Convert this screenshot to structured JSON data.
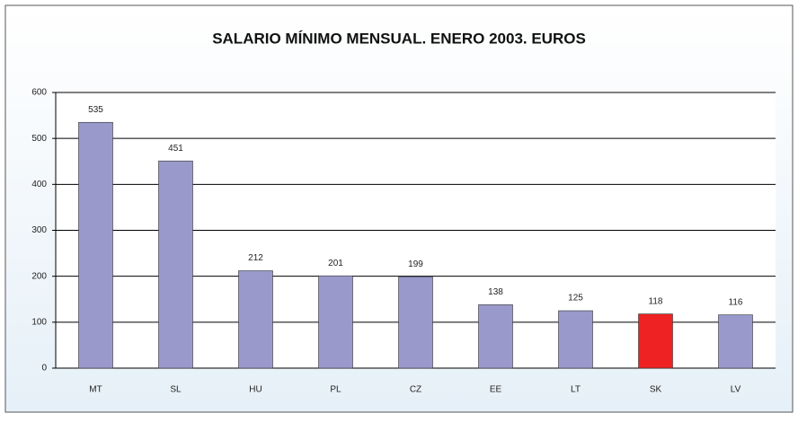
{
  "chart_data": {
    "type": "bar",
    "title": "SALARIO MÍNIMO MENSUAL. ENERO 2003. EUROS",
    "categories": [
      "MT",
      "SL",
      "HU",
      "PL",
      "CZ",
      "EE",
      "LT",
      "SK",
      "LV"
    ],
    "values": [
      535,
      451,
      212,
      201,
      199,
      138,
      125,
      118,
      116
    ],
    "colors": [
      "#9999cc",
      "#9999cc",
      "#9999cc",
      "#9999cc",
      "#9999cc",
      "#9999cc",
      "#9999cc",
      "#ee2222",
      "#9999cc"
    ],
    "ylim": [
      0,
      600
    ],
    "yticks": [
      0,
      100,
      200,
      300,
      400,
      500,
      600
    ],
    "grid": true
  }
}
